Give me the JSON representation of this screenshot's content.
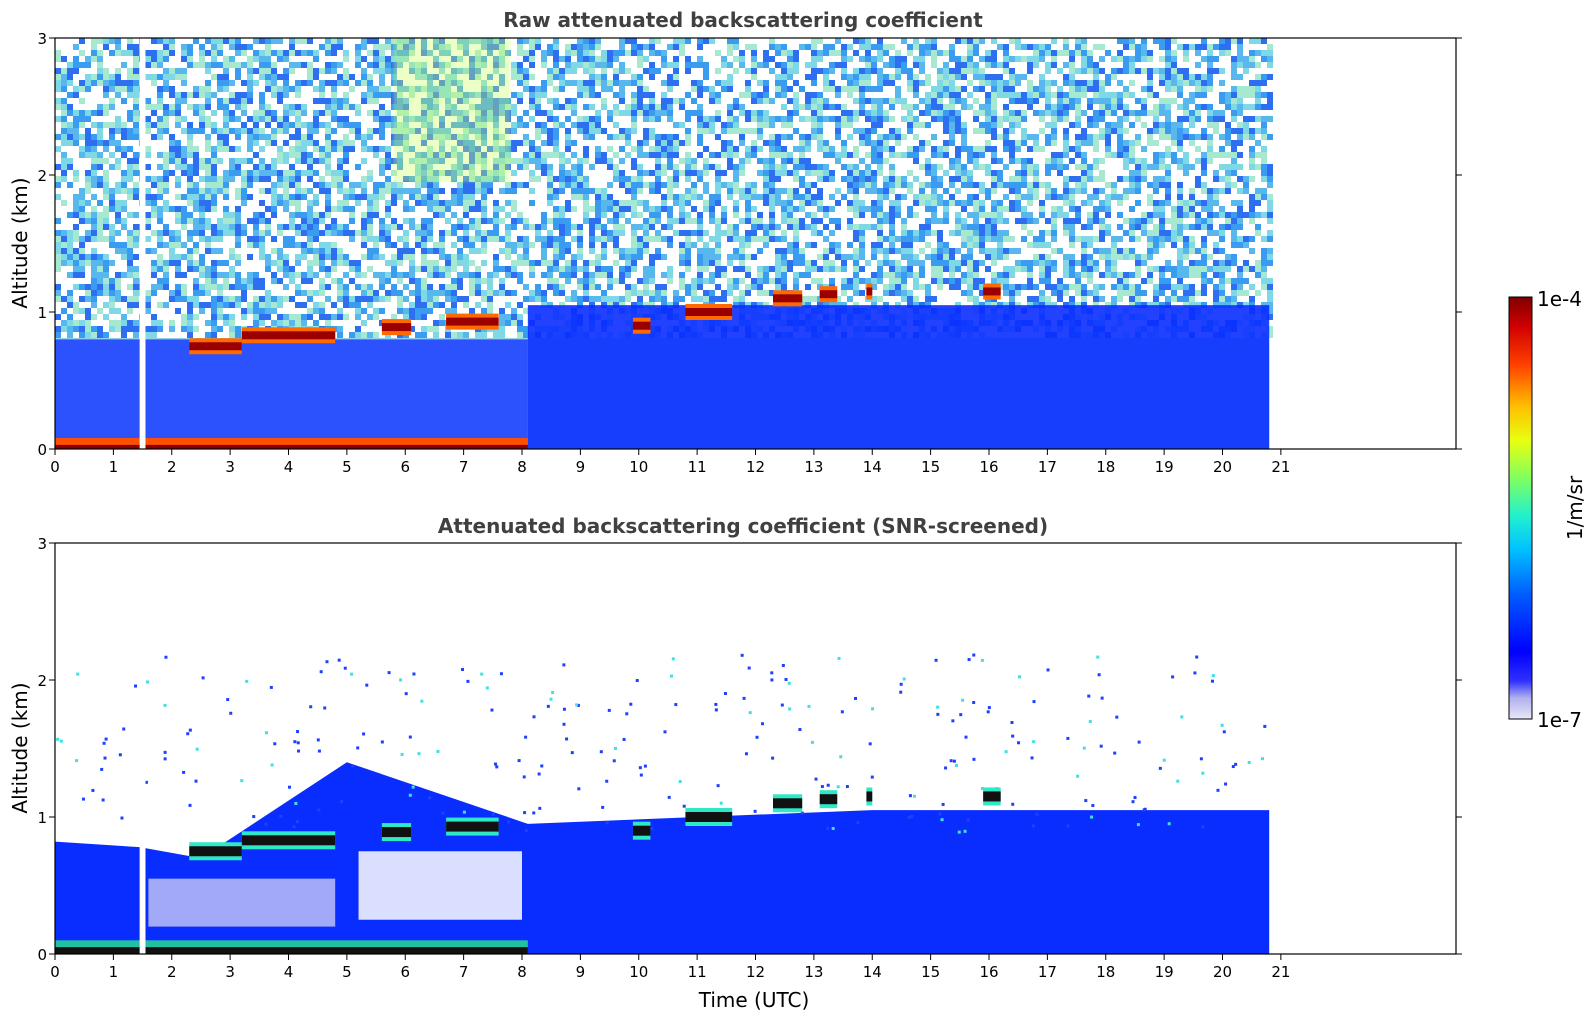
{
  "chart_data": [
    {
      "type": "heatmap",
      "title": "Raw attenuated backscattering coefficient",
      "xlabel": "",
      "ylabel": "Altitude (km)",
      "xlim": [
        0,
        24
      ],
      "ylim": [
        0,
        3
      ],
      "xticks": [
        "0",
        "1",
        "2",
        "3",
        "4",
        "5",
        "6",
        "7",
        "8",
        "9",
        "10",
        "11",
        "12",
        "13",
        "14",
        "15",
        "16",
        "17",
        "18",
        "19",
        "20",
        "21"
      ],
      "yticks": [
        "0",
        "1",
        "2",
        "3"
      ],
      "data_end_hour": 20.8,
      "gap_hours": [
        1.45,
        1.55
      ],
      "surface_layer": {
        "from_hour": 0,
        "to_hour": 8.1,
        "altitude_km": [
          0.0,
          0.08
        ],
        "level": "max"
      },
      "cloud_layers": [
        {
          "from_hour": 2.3,
          "to_hour": 3.2,
          "altitude_km": 0.75
        },
        {
          "from_hour": 3.2,
          "to_hour": 4.8,
          "altitude_km": 0.83
        },
        {
          "from_hour": 5.6,
          "to_hour": 6.1,
          "altitude_km": 0.89
        },
        {
          "from_hour": 6.7,
          "to_hour": 7.6,
          "altitude_km": 0.93
        },
        {
          "from_hour": 9.9,
          "to_hour": 10.2,
          "altitude_km": 0.9
        },
        {
          "from_hour": 10.8,
          "to_hour": 11.6,
          "altitude_km": 1.0
        },
        {
          "from_hour": 12.3,
          "to_hour": 12.8,
          "altitude_km": 1.1
        },
        {
          "from_hour": 13.1,
          "to_hour": 13.4,
          "altitude_km": 1.13
        },
        {
          "from_hour": 13.9,
          "to_hour": 14.0,
          "altitude_km": 1.15
        },
        {
          "from_hour": 15.9,
          "to_hour": 16.2,
          "altitude_km": 1.15
        }
      ]
    },
    {
      "type": "heatmap",
      "title": "Attenuated backscattering coefficient (SNR-screened)",
      "xlabel": "Time (UTC)",
      "ylabel": "Altitude (km)",
      "xlim": [
        0,
        24
      ],
      "ylim": [
        0,
        3
      ],
      "xticks": [
        "0",
        "1",
        "2",
        "3",
        "4",
        "5",
        "6",
        "7",
        "8",
        "9",
        "10",
        "11",
        "12",
        "13",
        "14",
        "15",
        "16",
        "17",
        "18",
        "19",
        "20",
        "21"
      ],
      "yticks": [
        "0",
        "1",
        "2",
        "3"
      ],
      "data_end_hour": 20.8,
      "gap_hours": [
        1.45,
        1.55
      ],
      "boundary_layer_top_km": [
        {
          "hour": 0,
          "km": 0.82
        },
        {
          "hour": 1.45,
          "km": 0.78
        },
        {
          "hour": 2.5,
          "km": 0.7
        },
        {
          "hour": 5.0,
          "km": 1.4
        },
        {
          "hour": 8.1,
          "km": 0.95
        },
        {
          "hour": 11.0,
          "km": 1.0
        },
        {
          "hour": 14.0,
          "km": 1.05
        },
        {
          "hour": 17.0,
          "km": 1.05
        },
        {
          "hour": 20.8,
          "km": 1.05
        }
      ]
    }
  ],
  "colorbar": {
    "label": "1/m/sr",
    "max_label": "1e-4",
    "min_label": "1e-7",
    "scale": "log",
    "colormap": "jet",
    "colors": [
      "#dcdcf5",
      "#b4b4f0",
      "#8c8cff",
      "#0000ff",
      "#0050ff",
      "#00a0ff",
      "#00e0e0",
      "#40ff90",
      "#b0ff40",
      "#ffff00",
      "#ffa000",
      "#ff3000",
      "#c00000",
      "#800000"
    ]
  }
}
